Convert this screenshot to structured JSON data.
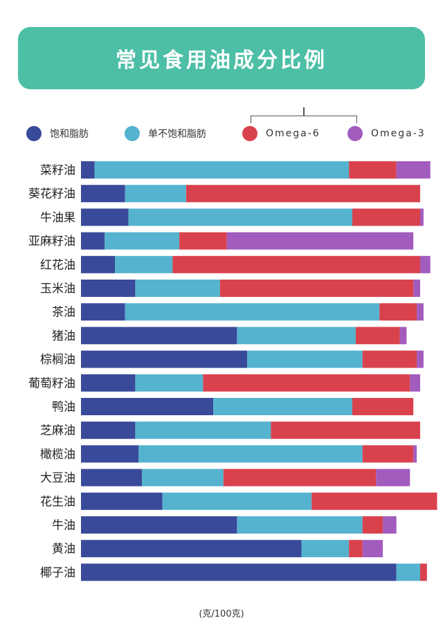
{
  "title": "常见食用油成分比例",
  "unit": "(克/100克)",
  "chart_data": {
    "type": "bar",
    "orientation": "horizontal",
    "stacked": true,
    "xlim": [
      0,
      100
    ],
    "categories": [
      "菜籽油",
      "葵花籽油",
      "牛油果",
      "亚麻籽油",
      "红花油",
      "玉米油",
      "茶油",
      "猪油",
      "棕榈油",
      "葡萄籽油",
      "鸭油",
      "芝麻油",
      "橄榄油",
      "大豆油",
      "花生油",
      "牛油",
      "黄油",
      "椰子油"
    ],
    "series": [
      {
        "name": "饱和脂肪",
        "color": "#3a4a9a",
        "values": [
          4,
          13,
          14,
          7,
          10,
          16,
          13,
          46,
          49,
          16,
          39,
          16,
          17,
          18,
          24,
          46,
          65,
          93
        ]
      },
      {
        "name": "单不饱和脂肪",
        "color": "#55b3cf",
        "values": [
          75,
          18,
          66,
          22,
          17,
          25,
          75,
          35,
          34,
          20,
          41,
          40,
          66,
          24,
          44,
          37,
          14,
          7
        ]
      },
      {
        "name": "Omega-6",
        "color": "#d9424d",
        "values": [
          14,
          69,
          20,
          14,
          73,
          57,
          11,
          13,
          16,
          61,
          18,
          44,
          15,
          45,
          37,
          6,
          4,
          2
        ]
      },
      {
        "name": "Omega-3",
        "color": "#a25cbe",
        "values": [
          10,
          0,
          1,
          55,
          3,
          2,
          2,
          2,
          2,
          3,
          0,
          0,
          1,
          10,
          0,
          4,
          6,
          0
        ]
      }
    ]
  }
}
